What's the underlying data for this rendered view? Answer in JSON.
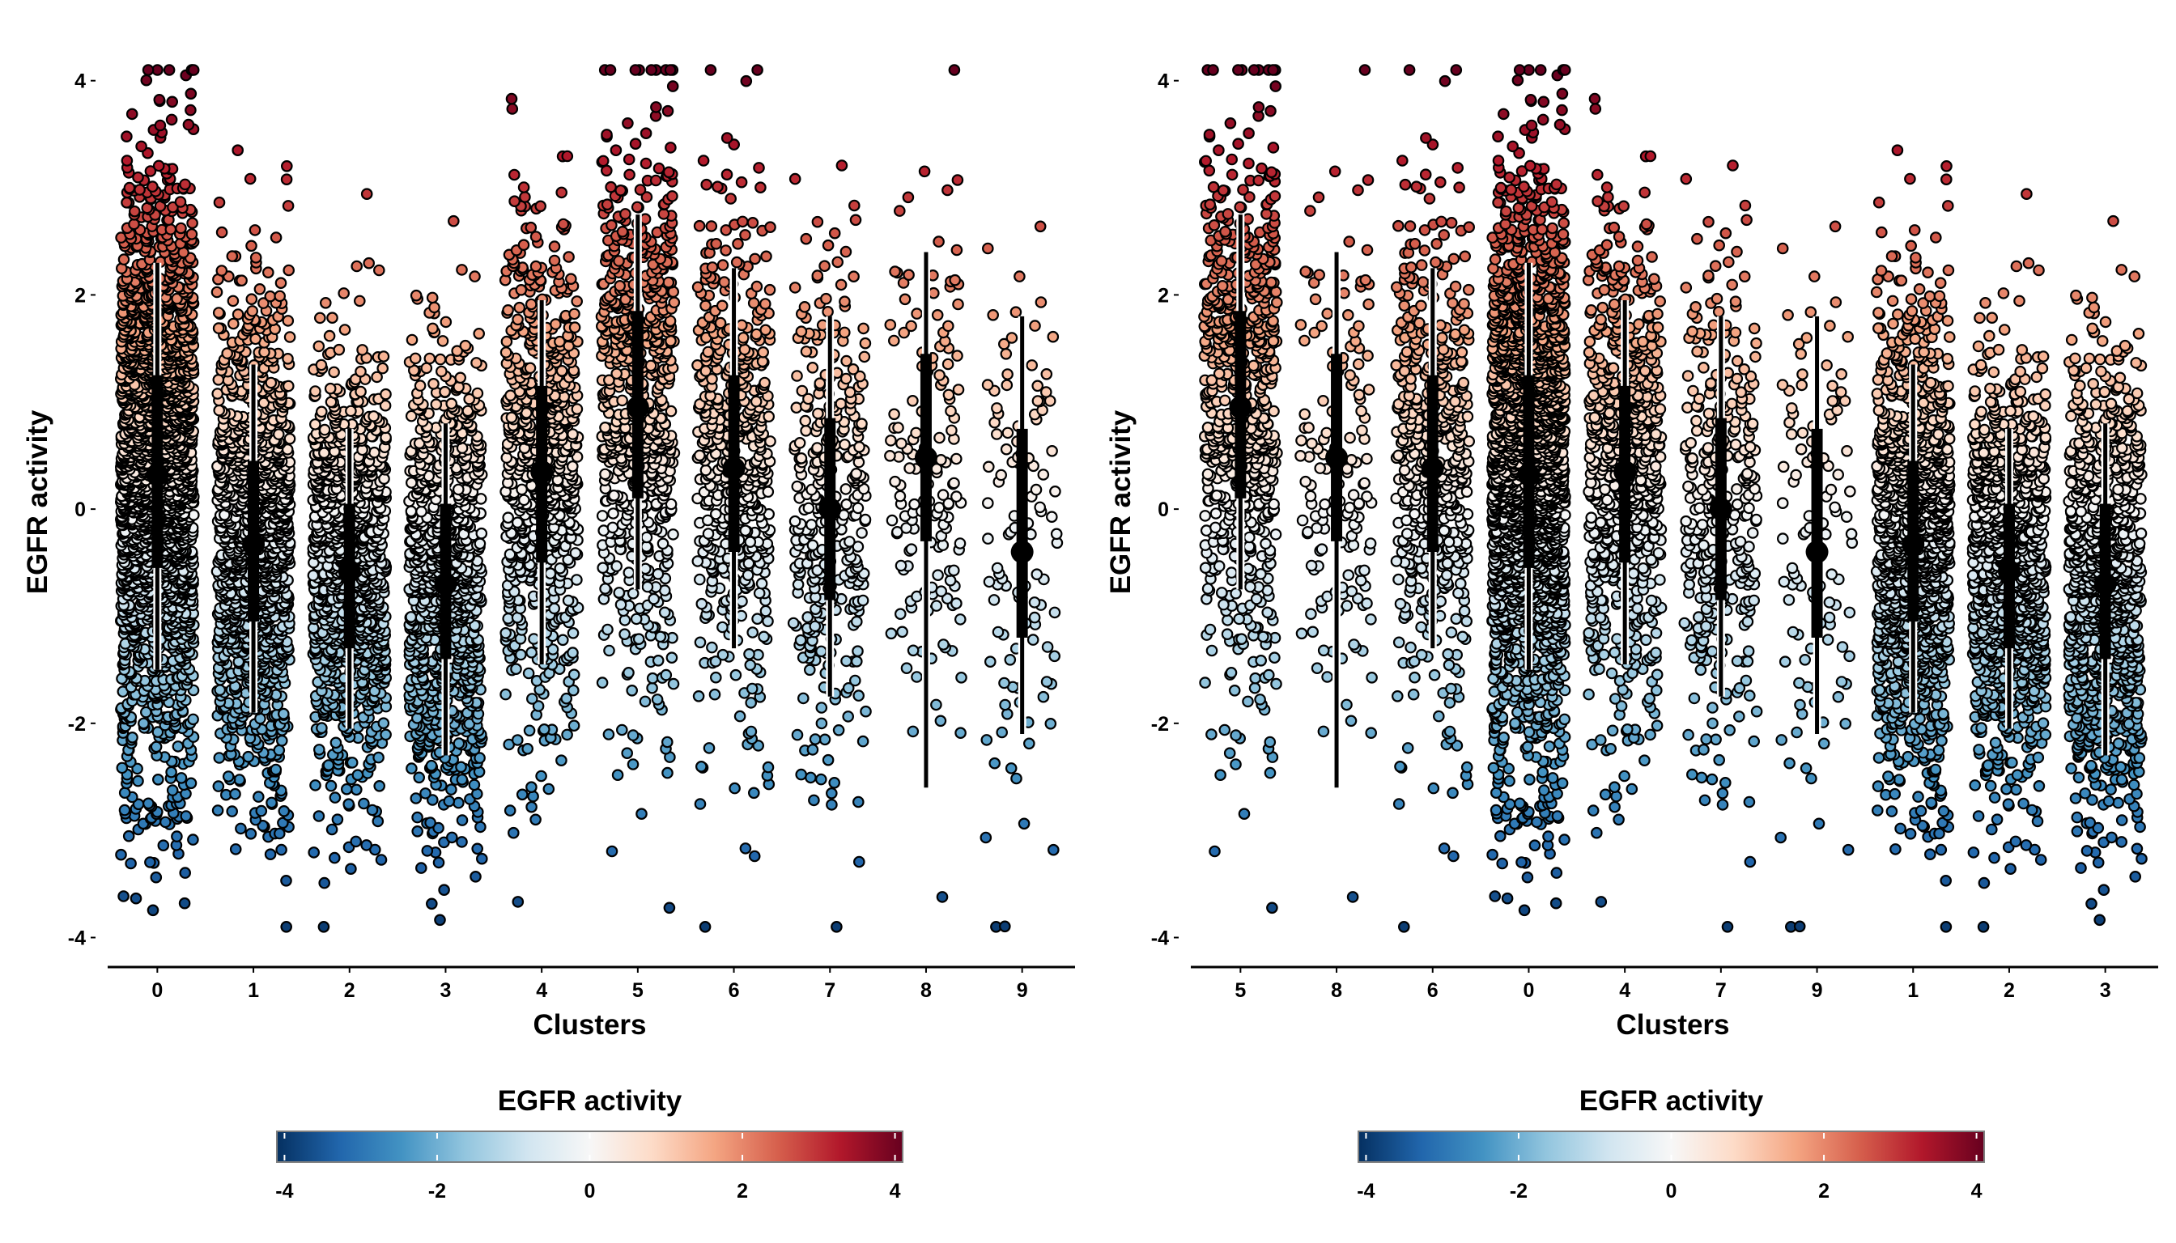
{
  "chart_data": [
    {
      "type": "scatter",
      "subtype": "jitter strip plot with median and interquartile interval",
      "xlabel": "Clusters",
      "ylabel": "EGFR activity",
      "ylim": [
        -4.2,
        4.3
      ],
      "yticks": [
        -4,
        -2,
        0,
        2,
        4
      ],
      "y_tick_labels": [
        "-4",
        "-2",
        "0",
        "2",
        "4"
      ],
      "categories": [
        "0",
        "1",
        "2",
        "3",
        "4",
        "5",
        "6",
        "7",
        "8",
        "9"
      ],
      "summary": [
        {
          "cluster": "0",
          "median": 0.32,
          "q1": -0.55,
          "q3": 1.25,
          "low": -1.5,
          "high": 2.3,
          "n": 2200
        },
        {
          "cluster": "1",
          "median": -0.33,
          "q1": -1.05,
          "q3": 0.45,
          "low": -1.9,
          "high": 1.35,
          "n": 1300
        },
        {
          "cluster": "2",
          "median": -0.58,
          "q1": -1.3,
          "q3": 0.05,
          "low": -2.05,
          "high": 0.75,
          "n": 1000
        },
        {
          "cluster": "3",
          "median": -0.7,
          "q1": -1.4,
          "q3": 0.05,
          "low": -2.3,
          "high": 0.8,
          "n": 950
        },
        {
          "cluster": "4",
          "median": 0.35,
          "q1": -0.5,
          "q3": 1.15,
          "low": -1.45,
          "high": 1.95,
          "n": 700
        },
        {
          "cluster": "5",
          "median": 0.95,
          "q1": 0.1,
          "q3": 1.85,
          "low": -0.75,
          "high": 2.75,
          "n": 700
        },
        {
          "cluster": "6",
          "median": 0.38,
          "q1": -0.4,
          "q3": 1.25,
          "low": -1.3,
          "high": 2.25,
          "n": 520
        },
        {
          "cluster": "7",
          "median": 0.0,
          "q1": -0.85,
          "q3": 0.85,
          "low": -1.75,
          "high": 1.8,
          "n": 330
        },
        {
          "cluster": "8",
          "median": 0.48,
          "q1": -0.3,
          "q3": 1.45,
          "low": -2.6,
          "high": 2.4,
          "n": 150
        },
        {
          "cluster": "9",
          "median": -0.4,
          "q1": -1.2,
          "q3": 0.75,
          "low": -2.1,
          "high": 1.8,
          "n": 110
        }
      ],
      "legend": {
        "title": "EGFR activity",
        "position": "bottom",
        "limits": [
          -4.1,
          4.1
        ],
        "ticks": [
          -4,
          -2,
          0,
          2,
          4
        ],
        "tick_labels": [
          "-4",
          "-2",
          "0",
          "2",
          "4"
        ],
        "colors": [
          "#053061",
          "#2166ac",
          "#4393c3",
          "#92c5de",
          "#d1e5f0",
          "#f7f7f7",
          "#fddbc7",
          "#f4a582",
          "#d6604d",
          "#b2182b",
          "#67001f"
        ]
      },
      "grid": false
    },
    {
      "type": "scatter",
      "subtype": "jitter strip plot with median and interquartile interval",
      "xlabel": "Clusters",
      "ylabel": "EGFR activity",
      "ylim": [
        -4.2,
        4.3
      ],
      "yticks": [
        -4,
        -2,
        0,
        2,
        4
      ],
      "y_tick_labels": [
        "-4",
        "-2",
        "0",
        "2",
        "4"
      ],
      "categories": [
        "5",
        "8",
        "6",
        "0",
        "4",
        "7",
        "9",
        "1",
        "2",
        "3"
      ],
      "summary": [
        {
          "cluster": "5",
          "median": 0.95,
          "q1": 0.1,
          "q3": 1.85,
          "low": -0.75,
          "high": 2.75,
          "n": 700
        },
        {
          "cluster": "8",
          "median": 0.48,
          "q1": -0.3,
          "q3": 1.45,
          "low": -2.6,
          "high": 2.4,
          "n": 150
        },
        {
          "cluster": "6",
          "median": 0.38,
          "q1": -0.4,
          "q3": 1.25,
          "low": -1.3,
          "high": 2.25,
          "n": 520
        },
        {
          "cluster": "0",
          "median": 0.32,
          "q1": -0.55,
          "q3": 1.25,
          "low": -1.5,
          "high": 2.3,
          "n": 2200
        },
        {
          "cluster": "4",
          "median": 0.35,
          "q1": -0.5,
          "q3": 1.15,
          "low": -1.45,
          "high": 1.95,
          "n": 700
        },
        {
          "cluster": "7",
          "median": 0.0,
          "q1": -0.85,
          "q3": 0.85,
          "low": -1.75,
          "high": 1.8,
          "n": 330
        },
        {
          "cluster": "9",
          "median": -0.4,
          "q1": -1.2,
          "q3": 0.75,
          "low": -2.1,
          "high": 1.8,
          "n": 110
        },
        {
          "cluster": "1",
          "median": -0.33,
          "q1": -1.05,
          "q3": 0.45,
          "low": -1.9,
          "high": 1.35,
          "n": 1300
        },
        {
          "cluster": "2",
          "median": -0.58,
          "q1": -1.3,
          "q3": 0.05,
          "low": -2.05,
          "high": 0.75,
          "n": 1000
        },
        {
          "cluster": "3",
          "median": -0.7,
          "q1": -1.4,
          "q3": 0.05,
          "low": -2.3,
          "high": 0.8,
          "n": 950
        }
      ],
      "legend": {
        "title": "EGFR activity",
        "position": "bottom",
        "limits": [
          -4.1,
          4.1
        ],
        "ticks": [
          -4,
          -2,
          0,
          2,
          4
        ],
        "tick_labels": [
          "-4",
          "-2",
          "0",
          "2",
          "4"
        ],
        "colors": [
          "#053061",
          "#2166ac",
          "#4393c3",
          "#92c5de",
          "#d1e5f0",
          "#f7f7f7",
          "#fddbc7",
          "#f4a582",
          "#d6604d",
          "#b2182b",
          "#67001f"
        ]
      },
      "grid": false
    }
  ]
}
